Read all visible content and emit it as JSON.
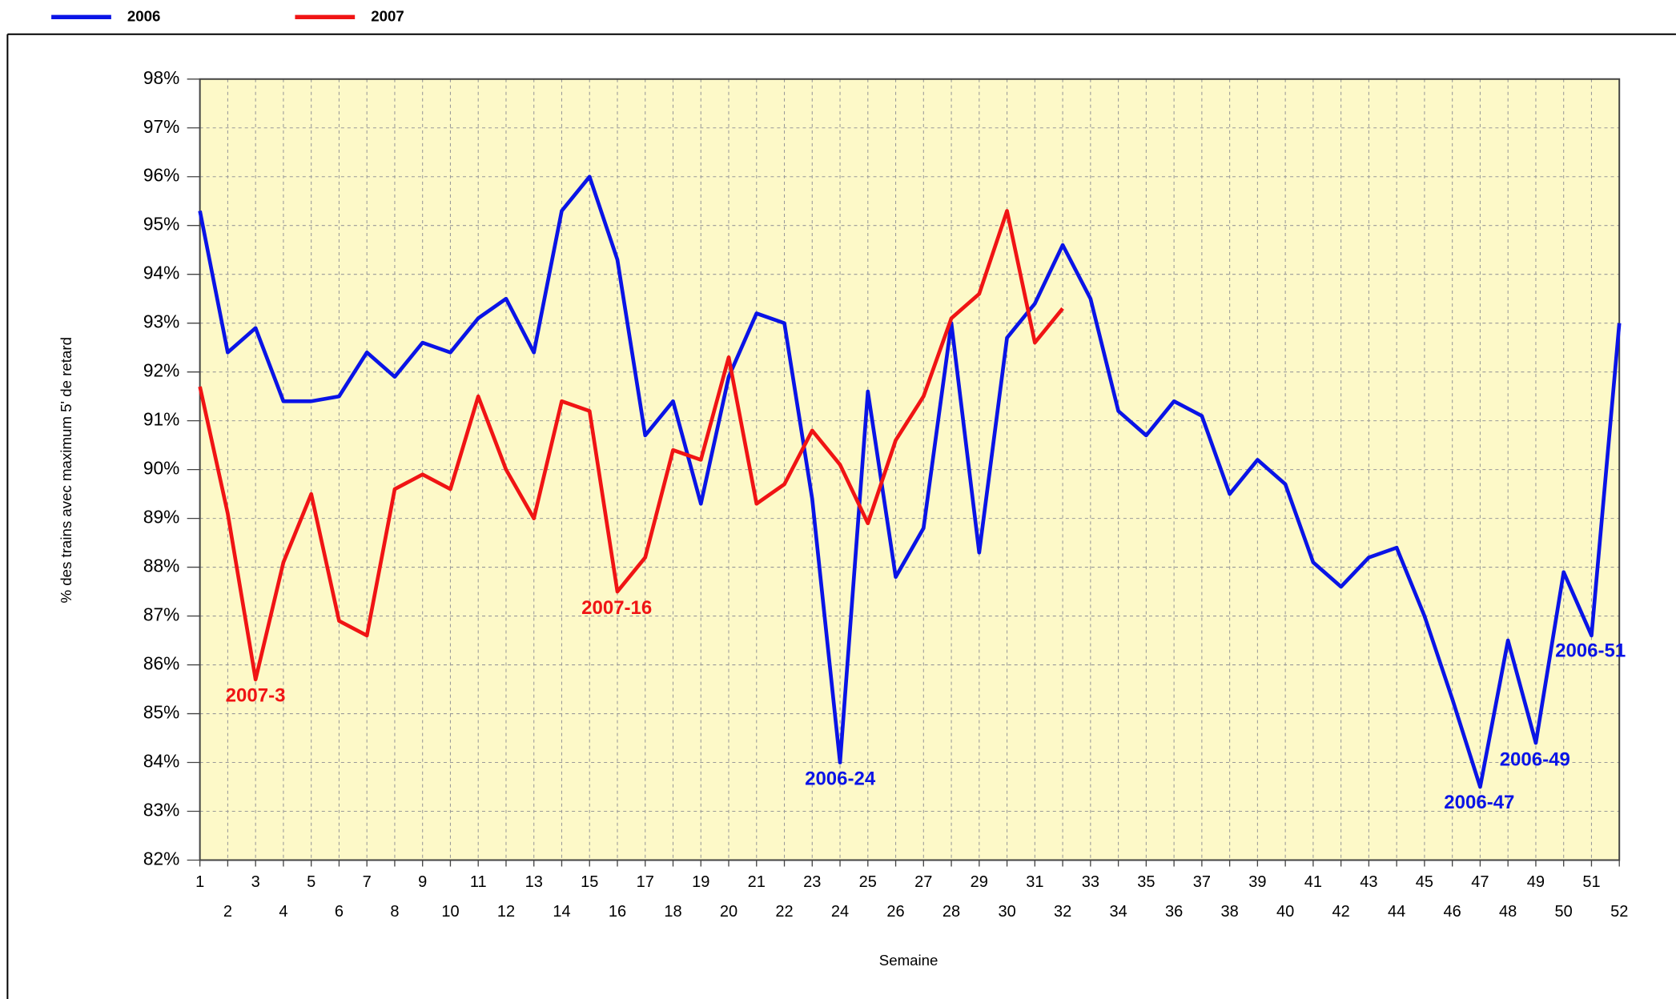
{
  "chart_data": {
    "type": "line",
    "xlabel": "Semaine",
    "ylabel": "% des trains avec maximum 5' de retard",
    "categories": [
      1,
      2,
      3,
      4,
      5,
      6,
      7,
      8,
      9,
      10,
      11,
      12,
      13,
      14,
      15,
      16,
      17,
      18,
      19,
      20,
      21,
      22,
      23,
      24,
      25,
      26,
      27,
      28,
      29,
      30,
      31,
      32,
      33,
      34,
      35,
      36,
      37,
      38,
      39,
      40,
      41,
      42,
      43,
      44,
      45,
      46,
      47,
      48,
      49,
      50,
      51,
      52
    ],
    "ylim": [
      82,
      98
    ],
    "yticks": [
      {
        "value": 82,
        "label": "82%"
      },
      {
        "value": 83,
        "label": "83%"
      },
      {
        "value": 84,
        "label": "84%"
      },
      {
        "value": 85,
        "label": "85%"
      },
      {
        "value": 86,
        "label": "86%"
      },
      {
        "value": 87,
        "label": "87%"
      },
      {
        "value": 88,
        "label": "88%"
      },
      {
        "value": 89,
        "label": "89%"
      },
      {
        "value": 90,
        "label": "90%"
      },
      {
        "value": 91,
        "label": "91%"
      },
      {
        "value": 92,
        "label": "92%"
      },
      {
        "value": 93,
        "label": "93%"
      },
      {
        "value": 94,
        "label": "94%"
      },
      {
        "value": 95,
        "label": "95%"
      },
      {
        "value": 96,
        "label": "96%"
      },
      {
        "value": 97,
        "label": "97%"
      },
      {
        "value": 98,
        "label": "98%"
      }
    ],
    "grid": true,
    "legend": "top-left",
    "series": [
      {
        "name": "2006",
        "color": "#0a14e6",
        "values": [
          95.3,
          92.4,
          92.9,
          91.4,
          91.4,
          91.5,
          92.4,
          91.9,
          92.6,
          92.4,
          93.1,
          93.5,
          92.4,
          95.3,
          96.0,
          94.3,
          90.7,
          91.4,
          89.3,
          91.9,
          93.2,
          93.0,
          89.4,
          84.0,
          91.6,
          87.8,
          88.8,
          93.0,
          88.3,
          92.7,
          93.4,
          94.6,
          93.5,
          91.2,
          90.7,
          91.4,
          91.1,
          89.5,
          90.2,
          89.7,
          88.1,
          87.6,
          88.2,
          88.4,
          87.0,
          85.3,
          83.5,
          86.5,
          84.4,
          87.9,
          86.6,
          93.0
        ]
      },
      {
        "name": "2007",
        "color": "#f01414",
        "values": [
          91.7,
          89.1,
          85.7,
          88.1,
          89.5,
          86.9,
          86.6,
          89.6,
          89.9,
          89.6,
          91.5,
          90.0,
          89.0,
          91.4,
          91.2,
          87.5,
          88.2,
          90.4,
          90.2,
          92.3,
          89.3,
          89.7,
          90.8,
          90.1,
          88.9,
          90.6,
          91.5,
          93.1,
          93.6,
          95.3,
          92.6,
          93.3,
          null,
          null,
          null,
          null,
          null,
          null,
          null,
          null,
          null,
          null,
          null,
          null,
          null,
          null,
          null,
          null,
          null,
          null,
          null,
          null
        ]
      }
    ],
    "annotations": [
      {
        "text": "2007-3",
        "series": "2007"
      },
      {
        "text": "2007-16",
        "series": "2007"
      },
      {
        "text": "2006-24",
        "series": "2006"
      },
      {
        "text": "2006-47",
        "series": "2006"
      },
      {
        "text": "2006-49",
        "series": "2006"
      },
      {
        "text": "2006-51",
        "series": "2006"
      }
    ]
  }
}
